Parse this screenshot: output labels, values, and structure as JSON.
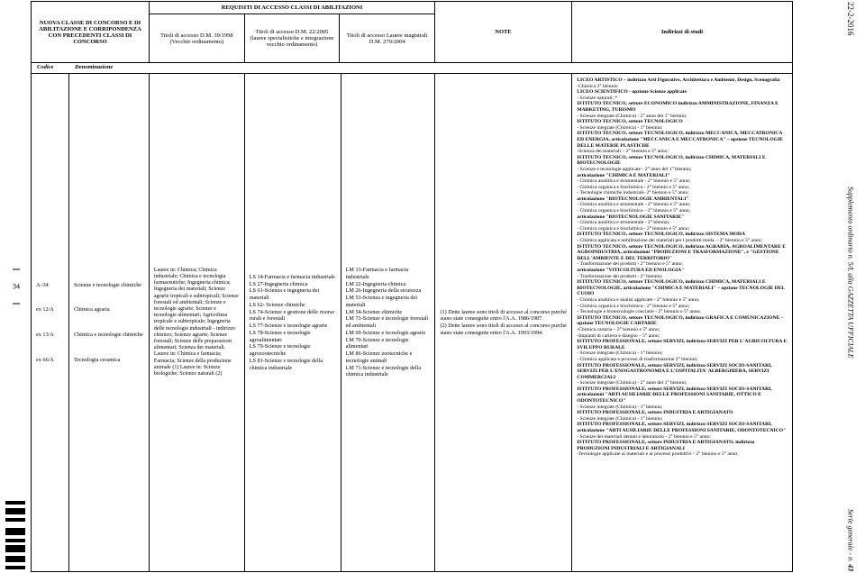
{
  "margin": {
    "date": "22-2-2016",
    "supplement": "Supplemento ordinario n. 5/L alla GAZZETTA UFFICIALE",
    "serie": "Serie generale - n. ",
    "serie_no": "43",
    "page_number": "34"
  },
  "header": {
    "nuova": "NUOVA CLASSE DI CONCORSO E DI ABILITAZIONE E CORRIPONDENZA CON PRECEDENTI CLASSI DI CONCORSO",
    "requisiti": "REQUISITI DI ACCESSO CLASSI DI ABILITAZIONI",
    "col_vecchio": "Titoli di accesso D.M. 39/1998 (Vecchio ordinamento)",
    "col_spec": "Titoli di accesso D.M. 22/2005 (lauree specialistiche e integrazione vecchio ordinamento)",
    "col_mag": "Titoli di accesso Lauree magistrali D.M. 270/2004",
    "note": "NOTE",
    "indirizzi": "Indirizzi di studi",
    "codice": "Codice",
    "denominazione": "Denominazione"
  },
  "rows": {
    "codes": [
      {
        "code": "A–34",
        "denom": "Scienze e tecnologie chimiche"
      },
      {
        "code": "ex 12/A",
        "denom": "Chimica agraria"
      },
      {
        "code": "ex 13/A",
        "denom": "Chimica e tecnologie chimiche"
      },
      {
        "code": "ex 66/A",
        "denom": "Tecnologia ceramica"
      }
    ],
    "vecchio": "Lauree in: Chimica; Chimica industriale; Chimica e tecnologia farmaceutiche; Ingegneria chimica; Ingegneria dei materiali; Scienze agrarie tropicali e subtropicali; Scienze forestali ed ambientali; Scienze e tecnologie agrarie; Scienze e tecnologie alimentari; Agricoltura tropicale e subtropicale; Ingegneria delle tecnologie industriali - indirizzo chimico; Scienze agrarie; Scienze forestali; Scienze delle preparazioni alimentari; Scienza dei materiali. Lauree in: Chimica e farmacia; Farmacia; Scienze della produzione animale (1) Lauree in: Scienze biologiche; Scienze naturali (2)",
    "spec": "LS 14-Farmacia e farmacia industriale\nLS 27-Ingegneria chimica\nLS 61-Scienza e ingegneria dei materiali\nLS 62- Scienze chimiche\nLS 74-Scienze e gestione delle risorse rurali e forestali\nLS 77-Scienze e tecnologie agrarie\nLS 78-Scienze e tecnologie agroalimentari\nLS 79-Scienze e tecnologie agrozootecniche\nLS 81-Scienze e tecnologie della chimica industriale",
    "mag": "LM 13-Farmacia e farmacia industriale\nLM 22-Ingegneria chimica\nLM 26-Ingegneria della sicurezza\nLM 53-Scienza e ingegneria dei materiali\nLM 54-Scienze chimiche\nLM 73-Scienze e tecnologie forestali ed ambientali\nLM 69-Scienze e tecnologie agrarie\nLM 70-Scienze e tecnologie alimentari\nLM 86-Scienze zootecniche e tecnologie animali\nLM 71-Scienze e tecnologie della chimica industriale",
    "note": "(1) Dette lauree sono titoli di accesso al concorso purché siano state conseguite entro l'A.A. 1986/1987.\n(2) Dette lauree sono titoli di accesso al concorso purché siano state conseguite entro l'A.A. 1993/1994.",
    "indirizzi": "LICEO ARTISTICO – indirizzo Arti Figurative, Architettura e Ambiente, Design, Scenografia\n-Chimica 2° biennio\nLICEO SCIENTIFICO - opzione Scienze applicate\n- Scienze naturali; *\nISTITUTO TECNICO, settore ECONOMICO indirizzo AMMINISTRAZIONE, FINANZA E MARKETING, TURISMO\n- Scienze integrate (Chimica) - 2° anno del 1° biennio;\nISTITUTO TECNICO, settore TECNOLOGICO\n- Scienze integrate (Chimica) - 1° biennio;\nISTITUTO TECNICO, settore TECNOLOGICO, indirizzo MECCANICA, MECCATRONICA ED ENERGIA, articolazione \"MECCANICA E MECCATRONICA\" – opzione TECNOLOGIE DELLE MATERIE PLASTICHE\n-Scienza dei materiali – 2° biennio e 5° anno;\nISTITUTO TECNICO, settore TECNOLOGICO, indirizzo CHIMICA, MATERIALI E BIOTECNOLOGIE\n- Scienze e tecnologie applicate - 2° anno del 1° biennio;\narticolazione \"CHIMICA E MATERIALI\"\n- Chimica analitica e strumentale - 2° biennio e 5° anno;\n- Chimica organica e biochimica - 2° biennio e 5° anno;\n- Tecnologie chimiche industriali- 2° biennio e 5° anno;\narticolazione \"BIOTECNOLOGIE AMBIENTALI\"\n- Chimica analitica e strumentale - 2° biennio e 5° anno;\n- Chimica organica e biochimica – 2° biennio e 5° anno;\narticolazione \"BIOTECNOLOGIE SANITARIE\"\n- Chimica analitica e strumentale - 2° biennio;\n- Chimica organica e biochimica - 2° biennio e 5° anno;\nISTITUTO TECNICO, settore TECNOLOGICO, indirizzo SISTEMA MODA\n- Chimica applicata e nobilitazione dei materiali per i prodotti moda. - 2° biennio e 5° anno;\nISTITUTO TECNICO, settore TECNOLOGICO, indirizzo AGRARIA, AGROALIMENTARE E AGROINDUSTRIA, articolazioni \"PRODUZIONI E TRASFORMAZIONE\", e \"GESTIONE DELL'AMBIENTE E DEL TERRITORIO\"\n- Trasformazione dei prodotti - 2° biennio e 5° anno;\narticolazione \"VITICOLTURA ED ENOLOGIA\"\n- Trasformazione dei prodotti - 2° biennio;\nISTITUTO TECNICO, settore TECNOLOGICO, indirizzo CHIMICA, MATERIALI E BIOTECNOLOGIE, articolazione \"CHIMICA E MATERIALI\" – opzione TECNOLOGIE DEL CUOIO\n- Chimica analitica e analisi applicate - 2° biennio e 5° anno;\n- Chimica organica e biochimica - 2° biennio e 5° anno;\n- Tecnologie e biotecnologie conciarie - 2° biennio e 5° anno;\nISTITUTO TECNICO, settore TECNOLOGICO, indirizzo GRAFICA E COMUNICAZIONE – opzione TECNOLOGIE CARTARIE\n-Chimica cartaria – 2° biennio e 5° anno;\n-Impianti di cartiera e disegno – 5° anno;\nISTITUTO PROFESSIONALE, settore SERVIZI, indirizzo SERVIZI PER L'AGRICOLTURA E SVILUPPO RURALE\n- Scienze integrate (Chimica) - 1° biennio;\n- Chimica applicata e processi di trasformazione 2° biennio;\nISTITUTO PROFESSIONALE, settore SERVIZI, indirizzo SERVIZI SOCIO-SANITARI, SERVIZI PER L'ENOGASTRONOMIA E L'OSPITALITA' ALBERGHIERA, SERVIZI COMMERCIALI\n- Scienze integrate (Chimica) - 2° anno del 1° biennio;\nISTITUTO PROFESSIONALE, settore SERVIZI, indirizzo SERVIZI SOCIO-SANITARI, articolazioni \"ARTI AUSILIARIE DELLE PROFESSIONI SANITARIE, OTTICO E ODONTOTECNICO\"\n- Scienze integrate (Chimica) - 1° biennio;\nISTITUTO PROFESSIONALE, settore INDUSTRIA E ARTIGIANATO\n- Scienze integrate (Chimica) - 1° biennio;\nISTITUTO PROFESSIONALE, settore SERVIZI, indirizzo SERVIZI SOCIO-SANITARI, articolazione \"ARTI AUSILIARIE DELLE PROFESSIONI SANITARIE, ODONTOTECNICO\"\n- Scienze dei materiali dentali e laboratorio - 2° biennio e 5° anno;\nISTITUTO PROFESSIONALE, settore INDUSTRIA E ARTIGIANATO, indirizzo PRODUZIONI INDUSTRIALI E ARTIGIANALI\n-Tecnologie applicate ai materiali e ai processi produttivi - 2° biennio e 5° anno;"
  }
}
